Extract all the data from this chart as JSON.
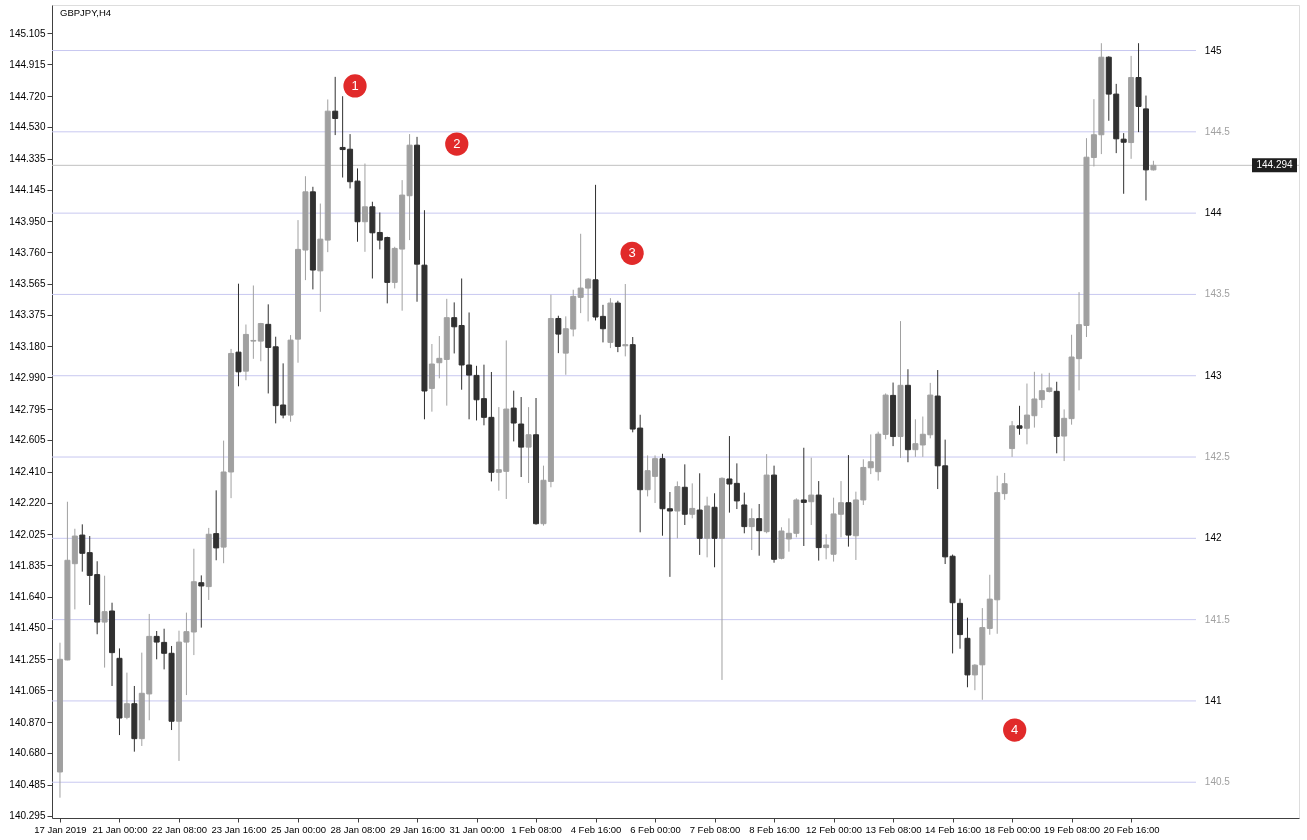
{
  "chart_data": {
    "type": "candlestick",
    "title": "GBPJPY,H4",
    "categories": [
      "17 Jan 2019",
      null,
      null,
      null,
      null,
      null,
      null,
      null,
      "21 Jan 00:00",
      null,
      null,
      null,
      null,
      null,
      null,
      null,
      "22 Jan 08:00",
      null,
      null,
      null,
      null,
      null,
      null,
      null,
      "23 Jan 16:00",
      null,
      null,
      null,
      null,
      null,
      null,
      null,
      "25 Jan 00:00",
      null,
      null,
      null,
      null,
      null,
      null,
      null,
      "28 Jan 08:00",
      null,
      null,
      null,
      null,
      null,
      null,
      null,
      "29 Jan 16:00",
      null,
      null,
      null,
      null,
      null,
      null,
      null,
      "31 Jan 00:00",
      null,
      null,
      null,
      null,
      null,
      null,
      null,
      "1 Feb 08:00",
      null,
      null,
      null,
      null,
      null,
      null,
      null,
      "4 Feb 16:00",
      null,
      null,
      null,
      null,
      null,
      null,
      null,
      "6 Feb 00:00",
      null,
      null,
      null,
      null,
      null,
      null,
      null,
      "7 Feb 08:00",
      null,
      null,
      null,
      null,
      null,
      null,
      null,
      "8 Feb 16:00",
      null,
      null,
      null,
      null,
      null,
      null,
      null,
      "12 Feb 00:00",
      null,
      null,
      null,
      null,
      null,
      null,
      null,
      "13 Feb 08:00",
      null,
      null,
      null,
      null,
      null,
      null,
      null,
      "14 Feb 16:00",
      null,
      null,
      null,
      null,
      null,
      null,
      null,
      "18 Feb 00:00",
      null,
      null,
      null,
      null,
      null,
      null,
      null,
      "19 Feb 08:00",
      null,
      null,
      null,
      null,
      null,
      null,
      null,
      "20 Feb 16:00",
      null,
      null,
      null
    ],
    "ohlc": [
      [
        140.563,
        141.358,
        140.405,
        141.256
      ],
      [
        141.252,
        142.225,
        141.25,
        141.865
      ],
      [
        141.844,
        142.059,
        141.563,
        142.014
      ],
      [
        142.02,
        142.086,
        141.795,
        141.908
      ],
      [
        141.912,
        142.014,
        141.59,
        141.772
      ],
      [
        141.777,
        141.859,
        141.41,
        141.485
      ],
      [
        141.485,
        141.77,
        141.205,
        141.549
      ],
      [
        141.553,
        141.604,
        141.092,
        141.297
      ],
      [
        141.262,
        141.323,
        140.79,
        140.895
      ],
      [
        140.899,
        141.174,
        140.887,
        140.983
      ],
      [
        140.983,
        141.092,
        140.688,
        140.768
      ],
      [
        140.768,
        141.297,
        140.723,
        141.047
      ],
      [
        141.043,
        141.535,
        140.881,
        141.397
      ],
      [
        141.397,
        141.43,
        141.256,
        141.362
      ],
      [
        141.36,
        141.444,
        141.194,
        141.293
      ],
      [
        141.293,
        141.338,
        140.821,
        140.875
      ],
      [
        140.875,
        141.432,
        140.631,
        141.362
      ],
      [
        141.362,
        141.543,
        141.036,
        141.426
      ],
      [
        141.424,
        141.936,
        141.282,
        141.733
      ],
      [
        141.727,
        141.772,
        141.451,
        141.707
      ],
      [
        141.703,
        142.064,
        141.621,
        142.025
      ],
      [
        142.029,
        142.295,
        141.865,
        141.941
      ],
      [
        141.946,
        142.601,
        141.847,
        142.408
      ],
      [
        142.408,
        143.165,
        142.247,
        143.137
      ],
      [
        143.145,
        143.566,
        142.935,
        143.024
      ],
      [
        143.028,
        143.315,
        142.972,
        143.254
      ],
      [
        143.213,
        143.555,
        143.104,
        143.217
      ],
      [
        143.213,
        143.325,
        143.089,
        143.321
      ],
      [
        143.316,
        143.439,
        142.891,
        143.174
      ],
      [
        143.178,
        143.24,
        142.707,
        142.816
      ],
      [
        142.82,
        143.076,
        142.738,
        142.758
      ],
      [
        142.758,
        143.25,
        142.717,
        143.219
      ],
      [
        143.225,
        143.957,
        143.08,
        143.777
      ],
      [
        143.773,
        144.227,
        143.588,
        144.131
      ],
      [
        144.131,
        144.162,
        143.531,
        143.65
      ],
      [
        143.645,
        144.059,
        143.393,
        143.84
      ],
      [
        143.834,
        144.699,
        143.76,
        144.627
      ],
      [
        144.627,
        144.838,
        144.48,
        144.582
      ],
      [
        144.404,
        144.719,
        144.219,
        144.391
      ],
      [
        144.393,
        144.486,
        144.152,
        144.193
      ],
      [
        144.197,
        144.275,
        143.824,
        143.947
      ],
      [
        143.947,
        144.305,
        143.762,
        144.039
      ],
      [
        144.039,
        144.07,
        143.598,
        143.879
      ],
      [
        143.881,
        144.004,
        143.777,
        143.834
      ],
      [
        143.85,
        143.855,
        143.445,
        143.574
      ],
      [
        143.574,
        143.793,
        143.537,
        143.783
      ],
      [
        143.779,
        144.203,
        143.4,
        144.111
      ],
      [
        144.107,
        144.486,
        143.834,
        144.418
      ],
      [
        144.418,
        144.469,
        143.455,
        143.686
      ],
      [
        143.68,
        144.018,
        142.732,
        142.906
      ],
      [
        142.922,
        143.195,
        142.779,
        143.072
      ],
      [
        143.08,
        143.244,
        142.984,
        143.107
      ],
      [
        143.1,
        143.473,
        142.816,
        143.357
      ],
      [
        143.357,
        143.451,
        143.137,
        143.301
      ],
      [
        143.309,
        143.598,
        142.914,
        143.066
      ],
      [
        143.066,
        143.389,
        142.732,
        143.004
      ],
      [
        143.002,
        143.061,
        142.725,
        142.852
      ],
      [
        142.859,
        143.068,
        142.695,
        142.744
      ],
      [
        142.744,
        143.023,
        142.35,
        142.406
      ],
      [
        142.406,
        142.807,
        142.293,
        142.422
      ],
      [
        142.412,
        143.217,
        142.242,
        142.795
      ],
      [
        142.801,
        142.908,
        142.596,
        142.709
      ],
      [
        142.703,
        142.869,
        142.377,
        142.561
      ],
      [
        142.561,
        142.807,
        142.34,
        142.637
      ],
      [
        142.637,
        142.863,
        142.084,
        142.09
      ],
      [
        142.09,
        142.447,
        142.078,
        142.357
      ],
      [
        142.35,
        143.498,
        142.314,
        143.352
      ],
      [
        143.352,
        143.369,
        143.139,
        143.256
      ],
      [
        143.139,
        143.365,
        143.006,
        143.289
      ],
      [
        143.287,
        143.529,
        143.242,
        143.488
      ],
      [
        143.482,
        143.873,
        143.385,
        143.539
      ],
      [
        143.539,
        143.6,
        143.334,
        143.594
      ],
      [
        143.59,
        144.174,
        143.34,
        143.361
      ],
      [
        143.365,
        143.436,
        143.205,
        143.289
      ],
      [
        143.205,
        143.477,
        143.17,
        143.447
      ],
      [
        143.447,
        143.461,
        143.145,
        143.18
      ],
      [
        143.184,
        143.564,
        143.119,
        143.191
      ],
      [
        143.191,
        143.238,
        142.652,
        142.672
      ],
      [
        142.678,
        142.76,
        142.037,
        142.299
      ],
      [
        142.299,
        142.51,
        142.258,
        142.416
      ],
      [
        142.381,
        142.51,
        142.217,
        142.49
      ],
      [
        142.49,
        142.52,
        142.016,
        142.182
      ],
      [
        142.182,
        142.285,
        141.763,
        142.168
      ],
      [
        142.168,
        142.35,
        142.0,
        142.318
      ],
      [
        142.314,
        142.455,
        142.082,
        142.148
      ],
      [
        142.148,
        142.338,
        142.123,
        142.184
      ],
      [
        142.174,
        142.4,
        141.898,
        142.0
      ],
      [
        142.0,
        142.256,
        141.883,
        142.199
      ],
      [
        142.191,
        142.277,
        141.822,
        142.0
      ],
      [
        142.0,
        142.375,
        141.129,
        142.369
      ],
      [
        142.365,
        142.629,
        142.158,
        142.334
      ],
      [
        142.338,
        142.461,
        142.18,
        142.23
      ],
      [
        142.205,
        142.281,
        142.031,
        142.072
      ],
      [
        142.072,
        142.184,
        141.928,
        142.121
      ],
      [
        142.121,
        142.211,
        141.893,
        142.047
      ],
      [
        142.041,
        142.518,
        142.031,
        142.389
      ],
      [
        142.389,
        142.447,
        141.85,
        141.871
      ],
      [
        141.877,
        142.068,
        141.871,
        142.045
      ],
      [
        141.996,
        142.123,
        141.918,
        142.031
      ],
      [
        142.031,
        142.246,
        142.006,
        142.236
      ],
      [
        142.236,
        142.557,
        141.953,
        142.221
      ],
      [
        142.225,
        142.496,
        142.082,
        142.266
      ],
      [
        142.266,
        142.352,
        141.863,
        141.943
      ],
      [
        141.943,
        142.025,
        141.871,
        141.959
      ],
      [
        141.902,
        142.25,
        141.857,
        142.15
      ],
      [
        142.148,
        142.352,
        142.006,
        142.219
      ],
      [
        142.219,
        142.512,
        141.949,
        142.02
      ],
      [
        142.016,
        142.287,
        141.867,
        142.236
      ],
      [
        142.236,
        142.486,
        142.205,
        142.436
      ],
      [
        142.434,
        142.639,
        142.395,
        142.471
      ],
      [
        142.41,
        142.656,
        142.355,
        142.641
      ],
      [
        142.639,
        142.891,
        142.609,
        142.881
      ],
      [
        142.879,
        142.958,
        142.567,
        142.626
      ],
      [
        142.626,
        143.336,
        142.495,
        142.941
      ],
      [
        142.941,
        143.04,
        142.468,
        142.545
      ],
      [
        142.545,
        142.732,
        142.501,
        142.582
      ],
      [
        142.574,
        142.749,
        142.501,
        142.64
      ],
      [
        142.637,
        142.956,
        142.615,
        142.881
      ],
      [
        142.875,
        143.035,
        142.303,
        142.446
      ],
      [
        142.446,
        142.607,
        141.842,
        141.886
      ],
      [
        141.89,
        141.9,
        141.292,
        141.604
      ],
      [
        141.6,
        141.629,
        141.321,
        141.408
      ],
      [
        141.385,
        141.512,
        141.084,
        141.16
      ],
      [
        141.16,
        141.226,
        141.066,
        141.22
      ],
      [
        141.222,
        141.571,
        141.007,
        141.451
      ],
      [
        141.446,
        141.776,
        141.407,
        141.626
      ],
      [
        141.622,
        142.385,
        141.413,
        142.281
      ],
      [
        142.275,
        142.402,
        142.237,
        142.336
      ],
      [
        142.552,
        142.721,
        142.501,
        142.692
      ],
      [
        142.692,
        142.815,
        142.637,
        142.677
      ],
      [
        142.677,
        142.952,
        142.578,
        142.758
      ],
      [
        142.754,
        143.024,
        142.681,
        142.857
      ],
      [
        142.853,
        143.013,
        142.802,
        142.908
      ],
      [
        142.903,
        143.018,
        142.897,
        142.925
      ],
      [
        142.904,
        142.963,
        142.523,
        142.627
      ],
      [
        142.629,
        142.793,
        142.475,
        142.738
      ],
      [
        142.736,
        143.252,
        142.699,
        143.115
      ],
      [
        143.105,
        143.514,
        142.91,
        143.314
      ],
      [
        143.309,
        144.461,
        143.238,
        144.344
      ],
      [
        144.342,
        144.701,
        144.287,
        144.482
      ],
      [
        144.482,
        145.045,
        144.363,
        144.959
      ],
      [
        144.959,
        144.965,
        144.568,
        144.732
      ],
      [
        144.732,
        144.795,
        144.369,
        144.457
      ],
      [
        144.455,
        144.492,
        144.119,
        144.436
      ],
      [
        144.434,
        144.967,
        144.334,
        144.834
      ],
      [
        144.834,
        145.045,
        144.498,
        144.656
      ],
      [
        144.641,
        144.723,
        144.078,
        144.266
      ],
      [
        144.266,
        144.322,
        144.262,
        144.294
      ]
    ],
    "colors": [
      "#a0a0a0",
      "#a0a0a0",
      "#a0a0a0",
      "#303030",
      "#303030",
      "#303030",
      "#a0a0a0",
      "#303030",
      "#303030",
      "#a0a0a0",
      "#303030",
      "#a0a0a0",
      "#a0a0a0",
      "#303030",
      "#303030",
      "#303030",
      "#a0a0a0",
      "#a0a0a0",
      "#a0a0a0",
      "#303030",
      "#a0a0a0",
      "#303030",
      "#a0a0a0",
      "#a0a0a0",
      "#303030",
      "#a0a0a0",
      "#a0a0a0",
      "#a0a0a0",
      "#303030",
      "#303030",
      "#303030",
      "#a0a0a0",
      "#a0a0a0",
      "#a0a0a0",
      "#303030",
      "#a0a0a0",
      "#a0a0a0",
      "#303030",
      "#303030",
      "#303030",
      "#303030",
      "#a0a0a0",
      "#303030",
      "#303030",
      "#303030",
      "#a0a0a0",
      "#a0a0a0",
      "#a0a0a0",
      "#303030",
      "#303030",
      "#a0a0a0",
      "#a0a0a0",
      "#a0a0a0",
      "#303030",
      "#303030",
      "#303030",
      "#303030",
      "#303030",
      "#303030",
      "#a0a0a0",
      "#a0a0a0",
      "#303030",
      "#303030",
      "#a0a0a0",
      "#303030",
      "#a0a0a0",
      "#a0a0a0",
      "#303030",
      "#a0a0a0",
      "#a0a0a0",
      "#a0a0a0",
      "#a0a0a0",
      "#303030",
      "#303030",
      "#a0a0a0",
      "#303030",
      "#a0a0a0",
      "#303030",
      "#303030",
      "#a0a0a0",
      "#a0a0a0",
      "#303030",
      "#303030",
      "#a0a0a0",
      "#303030",
      "#a0a0a0",
      "#303030",
      "#a0a0a0",
      "#303030",
      "#a0a0a0",
      "#303030",
      "#303030",
      "#303030",
      "#a0a0a0",
      "#303030",
      "#a0a0a0",
      "#303030",
      "#a0a0a0",
      "#a0a0a0",
      "#a0a0a0",
      "#303030",
      "#a0a0a0",
      "#303030",
      "#a0a0a0",
      "#a0a0a0",
      "#a0a0a0",
      "#303030",
      "#a0a0a0",
      "#a0a0a0",
      "#a0a0a0",
      "#a0a0a0",
      "#a0a0a0",
      "#303030",
      "#a0a0a0",
      "#303030",
      "#a0a0a0",
      "#a0a0a0",
      "#a0a0a0",
      "#303030",
      "#303030",
      "#303030",
      "#303030",
      "#303030",
      "#a0a0a0",
      "#a0a0a0",
      "#a0a0a0",
      "#a0a0a0",
      "#a0a0a0",
      "#a0a0a0",
      "#303030",
      "#a0a0a0",
      "#a0a0a0",
      "#a0a0a0",
      "#a0a0a0",
      "#303030",
      "#a0a0a0",
      "#a0a0a0",
      "#a0a0a0",
      "#a0a0a0",
      "#a0a0a0",
      "#a0a0a0",
      "#303030",
      "#303030",
      "#303030",
      "#a0a0a0",
      "#303030",
      "#303030",
      "#a0a0a0"
    ],
    "ylim": [
      140.28,
      145.28
    ],
    "yticks": [
      145.105,
      144.915,
      {
        "value": 144.72,
        "label": "144.720"
      },
      {
        "value": 144.53,
        "label": "144.530"
      },
      144.335,
      144.145,
      {
        "value": 143.95,
        "label": "143.950"
      },
      {
        "value": 143.76,
        "label": "143.760"
      },
      143.565,
      143.375,
      {
        "value": 143.18,
        "label": "143.180"
      },
      {
        "value": 142.99,
        "label": "142.990"
      },
      142.795,
      142.605,
      {
        "value": 142.41,
        "label": "142.410"
      },
      {
        "value": 142.22,
        "label": "142.220"
      },
      142.025,
      141.835,
      {
        "value": 141.64,
        "label": "141.640"
      },
      {
        "value": 141.45,
        "label": "141.450"
      },
      141.255,
      141.065,
      {
        "value": 140.87,
        "label": "140.870"
      },
      {
        "value": 140.68,
        "label": "140.680"
      },
      140.485,
      140.295
    ],
    "ref_lines": [
      {
        "axis": "y",
        "value": 145,
        "label": "145",
        "color": "#c8c8f0"
      },
      {
        "axis": "y",
        "value": 144.5,
        "label": "144.5",
        "color": "#c8c8f0"
      },
      {
        "axis": "y",
        "value": 144,
        "label": "144",
        "color": "#c8c8f0"
      },
      {
        "axis": "y",
        "value": 143.5,
        "label": "143.5",
        "color": "#c8c8f0"
      },
      {
        "axis": "y",
        "value": 143,
        "label": "143",
        "color": "#c8c8f0"
      },
      {
        "axis": "y",
        "value": 142.5,
        "label": "142.5",
        "color": "#c8c8f0"
      },
      {
        "axis": "y",
        "value": 142,
        "label": "142",
        "color": "#c8c8f0"
      },
      {
        "axis": "y",
        "value": 141.5,
        "label": "141.5",
        "color": "#c8c8f0"
      },
      {
        "axis": "y",
        "value": 141,
        "label": "141",
        "color": "#c8c8f0"
      },
      {
        "axis": "y",
        "value": 140.5,
        "label": "140.5",
        "color": "#c8c8f0"
      },
      {
        "axis": "y",
        "value": 144.294,
        "color": "#c0c0c0"
      }
    ],
    "annotations": [
      "1",
      "2",
      "3",
      "4",
      {
        "text": "144.294",
        "y": 144.294
      }
    ]
  }
}
